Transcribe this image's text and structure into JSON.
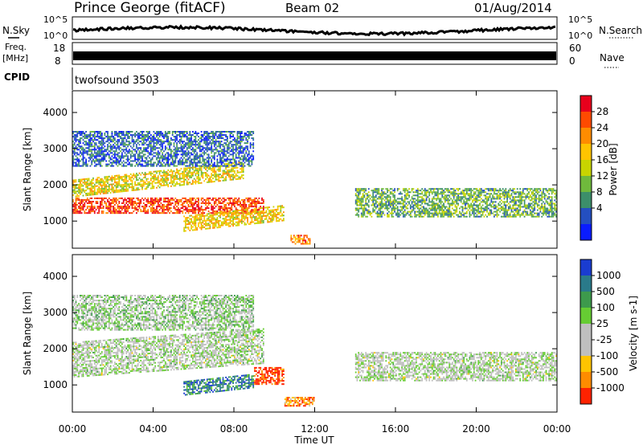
{
  "header": {
    "station": "Prince George (fitACF)",
    "beam": "Beam 02",
    "date": "01/Aug/2014"
  },
  "panels": {
    "nsky_label": "N.Sky",
    "nsearch_label": "N.Search",
    "nsky_ticks": [
      "10^5",
      "10^0"
    ],
    "nsearch_ticks": [
      "10^5",
      "10^0"
    ],
    "freq_label": "Freq.",
    "freq_unit": "[MHz]",
    "freq_ticks": [
      "18",
      "8"
    ],
    "nave_label": "Nave",
    "nave_ticks": [
      "60",
      "0"
    ],
    "cpid_label": "CPID",
    "cpid_value": "twofsound 3503"
  },
  "chart_data": [
    {
      "type": "heatmap",
      "name": "power",
      "ylabel": "Slant Range [km]",
      "y_ticks": [
        1000,
        2000,
        3000,
        4000
      ],
      "ylim": [
        250,
        4600
      ],
      "xlim": [
        0,
        24
      ],
      "colorbar": {
        "label": "Power [dB]",
        "ticks": [
          "28",
          "24",
          "20",
          "16",
          "12",
          "8",
          "4"
        ],
        "colors": [
          "#e8001c",
          "#ff4a00",
          "#ff8c00",
          "#ffc400",
          "#c8d400",
          "#6fb93c",
          "#3c8f6a",
          "#244fc0",
          "#0a1cff"
        ]
      },
      "bands": [
        {
          "t0": 0.0,
          "t1": 9.5,
          "r0": 1200,
          "r1": 1650,
          "rslope": 0,
          "level": 0.85
        },
        {
          "t0": 0.0,
          "t1": 8.5,
          "r0": 1650,
          "r1": 2150,
          "rslope": 60,
          "level": 0.55
        },
        {
          "t0": 5.5,
          "t1": 10.5,
          "r0": 700,
          "r1": 1150,
          "rslope": 60,
          "level": 0.6
        },
        {
          "t0": 10.8,
          "t1": 11.8,
          "r0": 350,
          "r1": 600,
          "rslope": 0,
          "level": 0.75
        },
        {
          "t0": 14.0,
          "t1": 24.0,
          "r0": 1100,
          "r1": 1900,
          "rslope": 0,
          "level": 0.35
        },
        {
          "t0": 0.0,
          "t1": 9.0,
          "r0": 2500,
          "r1": 3500,
          "rslope": 0,
          "level": 0.2
        }
      ]
    },
    {
      "type": "heatmap",
      "name": "velocity",
      "ylabel": "Slant Range [km]",
      "y_ticks": [
        1000,
        2000,
        3000,
        4000
      ],
      "ylim": [
        250,
        4600
      ],
      "xlim": [
        0,
        24
      ],
      "x_ticks": [
        "00:00",
        "04:00",
        "08:00",
        "12:00",
        "16:00",
        "20:00",
        "00:00"
      ],
      "xlabel": "Time UT",
      "colorbar": {
        "label": "Velocity [m s-1]",
        "ticks": [
          "1000",
          "500",
          "100",
          "25",
          "-25",
          "-100",
          "-500",
          "-1000"
        ],
        "colors": [
          "#1a3cd0",
          "#2a7a8a",
          "#3d9a4c",
          "#66cc33",
          "#bfbfbf",
          "#bfbfbf",
          "#ffc400",
          "#ff8c00",
          "#ff2200"
        ]
      },
      "bands": [
        {
          "t0": 0.0,
          "t1": 9.5,
          "r0": 1200,
          "r1": 2200,
          "rslope": 40,
          "level": 0.5
        },
        {
          "t0": 5.5,
          "t1": 9.0,
          "r0": 700,
          "r1": 1100,
          "rslope": 60,
          "level": 0.8
        },
        {
          "t0": 9.0,
          "t1": 10.5,
          "r0": 1000,
          "r1": 1500,
          "rslope": 0,
          "level": 0.05
        },
        {
          "t0": 10.5,
          "t1": 12.0,
          "r0": 400,
          "r1": 650,
          "rslope": 0,
          "level": 0.2
        },
        {
          "t0": 14.0,
          "t1": 24.0,
          "r0": 1100,
          "r1": 1900,
          "rslope": 0,
          "level": 0.5
        },
        {
          "t0": 0.0,
          "t1": 9.0,
          "r0": 2500,
          "r1": 3500,
          "rslope": 0,
          "level": 0.55
        }
      ]
    }
  ]
}
